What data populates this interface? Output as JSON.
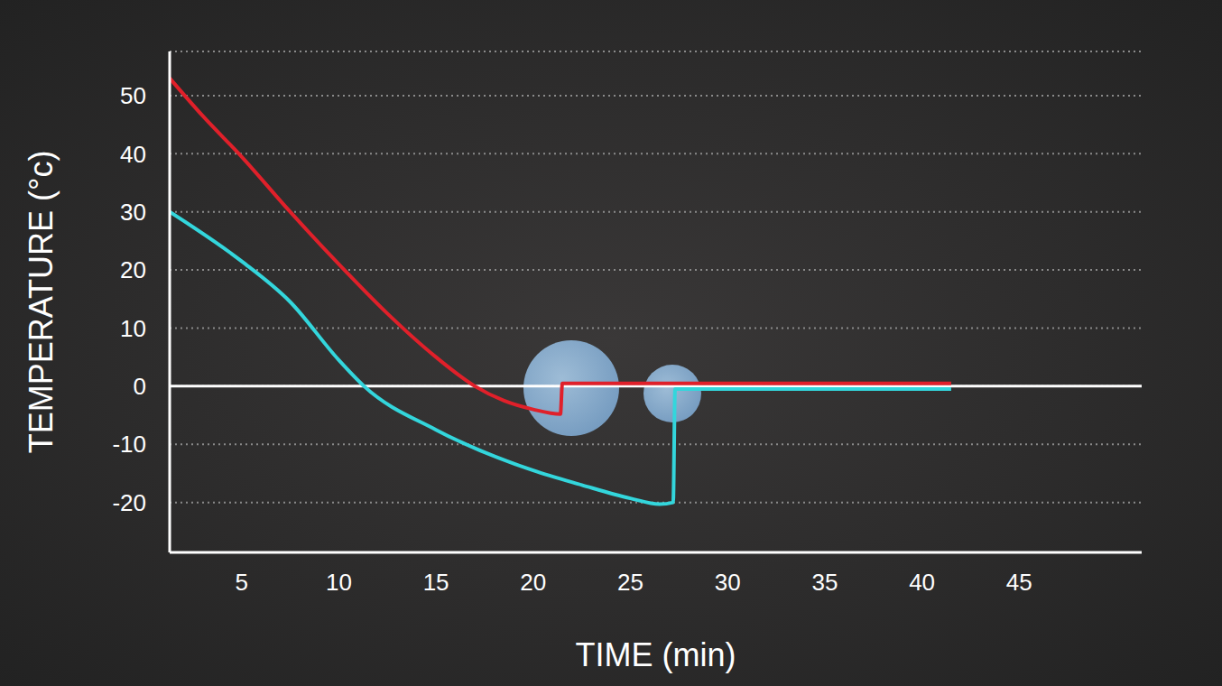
{
  "chart_data": {
    "type": "line",
    "x_label": "TIME (min)",
    "y_label": "TEMPERATURE (°c)",
    "xlim": [
      1.3,
      51.3
    ],
    "xticks": [
      5,
      10,
      15,
      20,
      25,
      30,
      35,
      40,
      45
    ],
    "ylim": [
      -28.6,
      57.6
    ],
    "yticks": [
      -20,
      -10,
      0,
      10,
      20,
      30,
      40,
      50
    ],
    "grid": true,
    "series": [
      {
        "color": "#e0202a",
        "x": [
          1.3,
          3,
          5,
          7.5,
          10,
          12.5,
          15,
          17,
          18.5,
          20,
          21.4,
          21.5,
          25,
          30,
          35,
          41.5
        ],
        "values": [
          53,
          46.5,
          39.5,
          30,
          21,
          12.5,
          5,
          0,
          -2.5,
          -4,
          -4.8,
          0.5,
          0.5,
          0.5,
          0.5,
          0.5
        ]
      },
      {
        "color": "#33d6dc",
        "x": [
          1.3,
          5,
          7.5,
          10,
          11.3,
          15,
          20,
          22.5,
          25,
          26.5,
          27.2,
          27.3,
          30,
          35,
          41.5
        ],
        "values": [
          30,
          21.5,
          14.5,
          4.5,
          0,
          -7.5,
          -14.5,
          -17,
          -19.3,
          -20.3,
          -20,
          -0.5,
          -0.5,
          -0.5,
          -0.5
        ]
      }
    ]
  }
}
